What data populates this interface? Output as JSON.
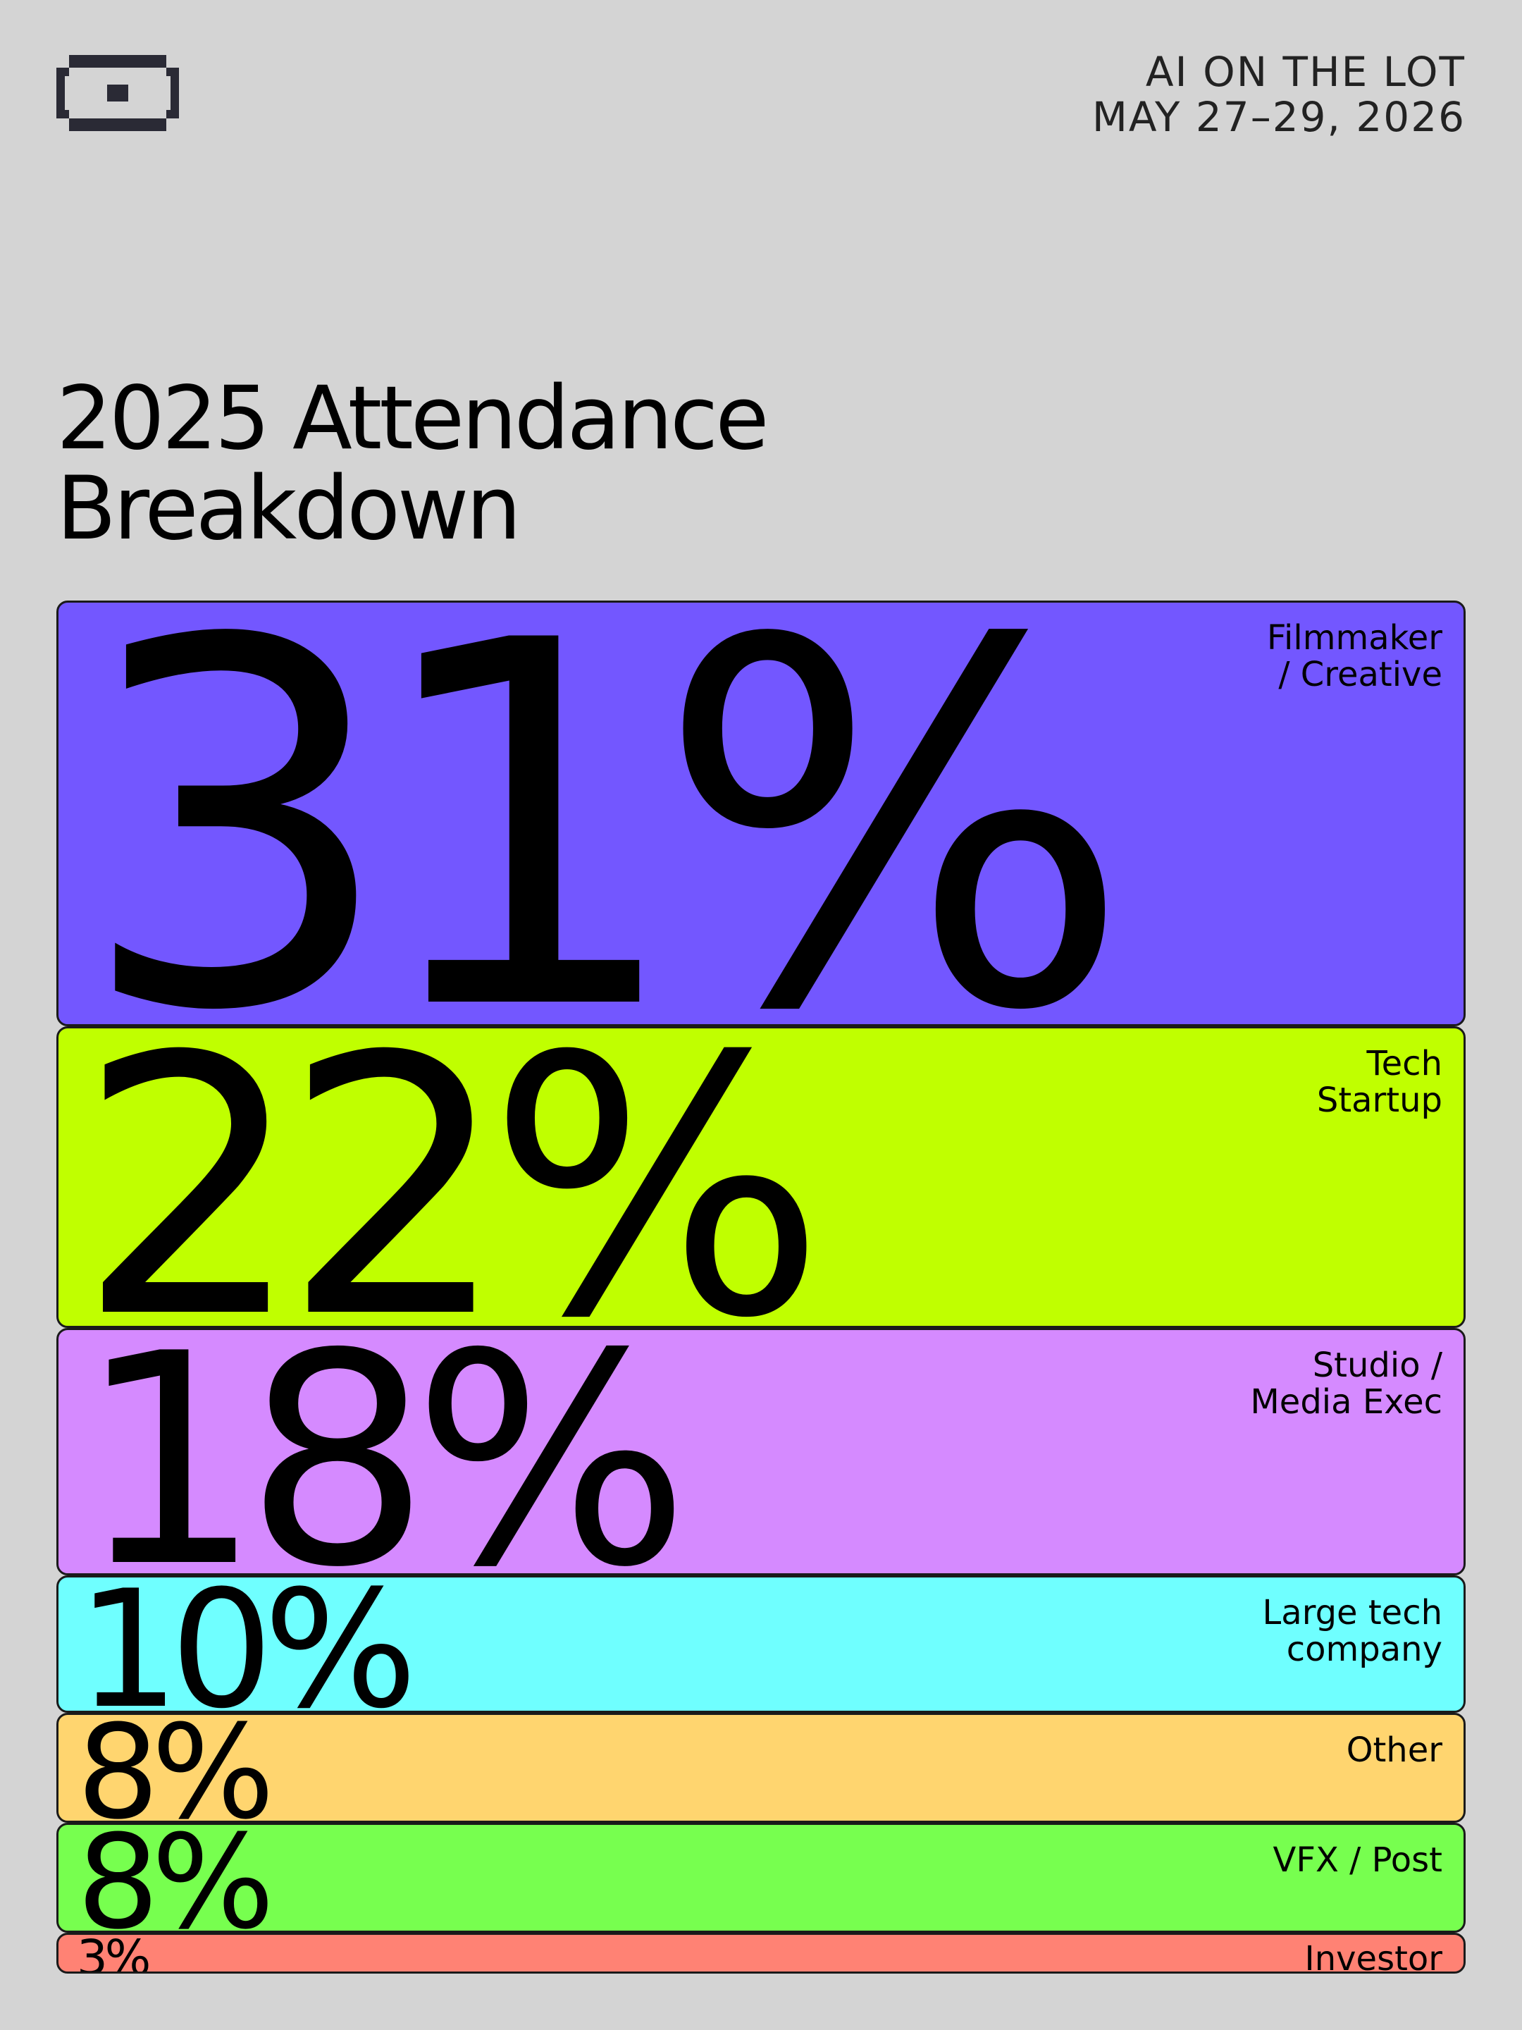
{
  "header": {
    "event": "AI ON THE LOT",
    "dates": "MAY 27–29, 2026"
  },
  "chart_data": {
    "type": "block",
    "title": "2025 Attendance Breakdown",
    "categories": [
      "Filmmaker\n/ Creative",
      "Tech\nStartup",
      "Studio /\nMedia Exec",
      "Large tech\ncompany",
      "Other",
      "VFX / Post",
      "Investor"
    ],
    "values": [
      31,
      22,
      18,
      10,
      8,
      8,
      3
    ],
    "value_labels": [
      "31%",
      "22%",
      "18%",
      "10%",
      "8%",
      "8%",
      "3%"
    ],
    "colors": [
      "#7357ff",
      "#c0ff00",
      "#d58aff",
      "#6fffff",
      "#ffd56f",
      "#77ff4f",
      "#ff8274"
    ]
  }
}
